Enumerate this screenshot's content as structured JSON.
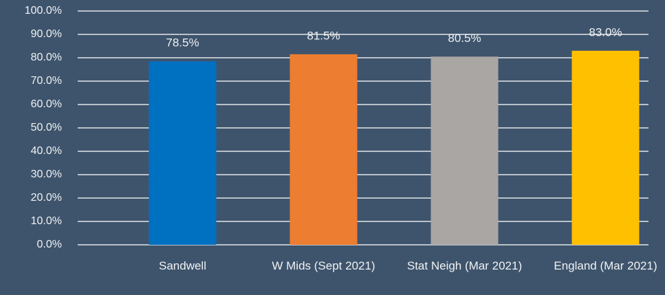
{
  "chart_data": {
    "type": "bar",
    "categories": [
      "Sandwell",
      "W Mids (Sept 2021)",
      "Stat Neigh (Mar 2021)",
      "England (Mar 2021)"
    ],
    "values": [
      78.5,
      81.5,
      80.5,
      83.0
    ],
    "value_labels": [
      "78.5%",
      "81.5%",
      "80.5%",
      "83.0%"
    ],
    "colors": [
      "#0070c0",
      "#ed7d31",
      "#aaa6a4",
      "#ffc000"
    ],
    "ylim": [
      0,
      100
    ],
    "yticks": [
      {
        "value": 0,
        "label": "0.0%"
      },
      {
        "value": 10,
        "label": "10.0%"
      },
      {
        "value": 20,
        "label": "20.0%"
      },
      {
        "value": 30,
        "label": "30.0%"
      },
      {
        "value": 40,
        "label": "40.0%"
      },
      {
        "value": 50,
        "label": "50.0%"
      },
      {
        "value": 60,
        "label": "60.0%"
      },
      {
        "value": 70,
        "label": "70.0%"
      },
      {
        "value": 80,
        "label": "80.0%"
      },
      {
        "value": 90,
        "label": "90.0%"
      },
      {
        "value": 100,
        "label": "100.0%"
      }
    ],
    "grid": true
  }
}
